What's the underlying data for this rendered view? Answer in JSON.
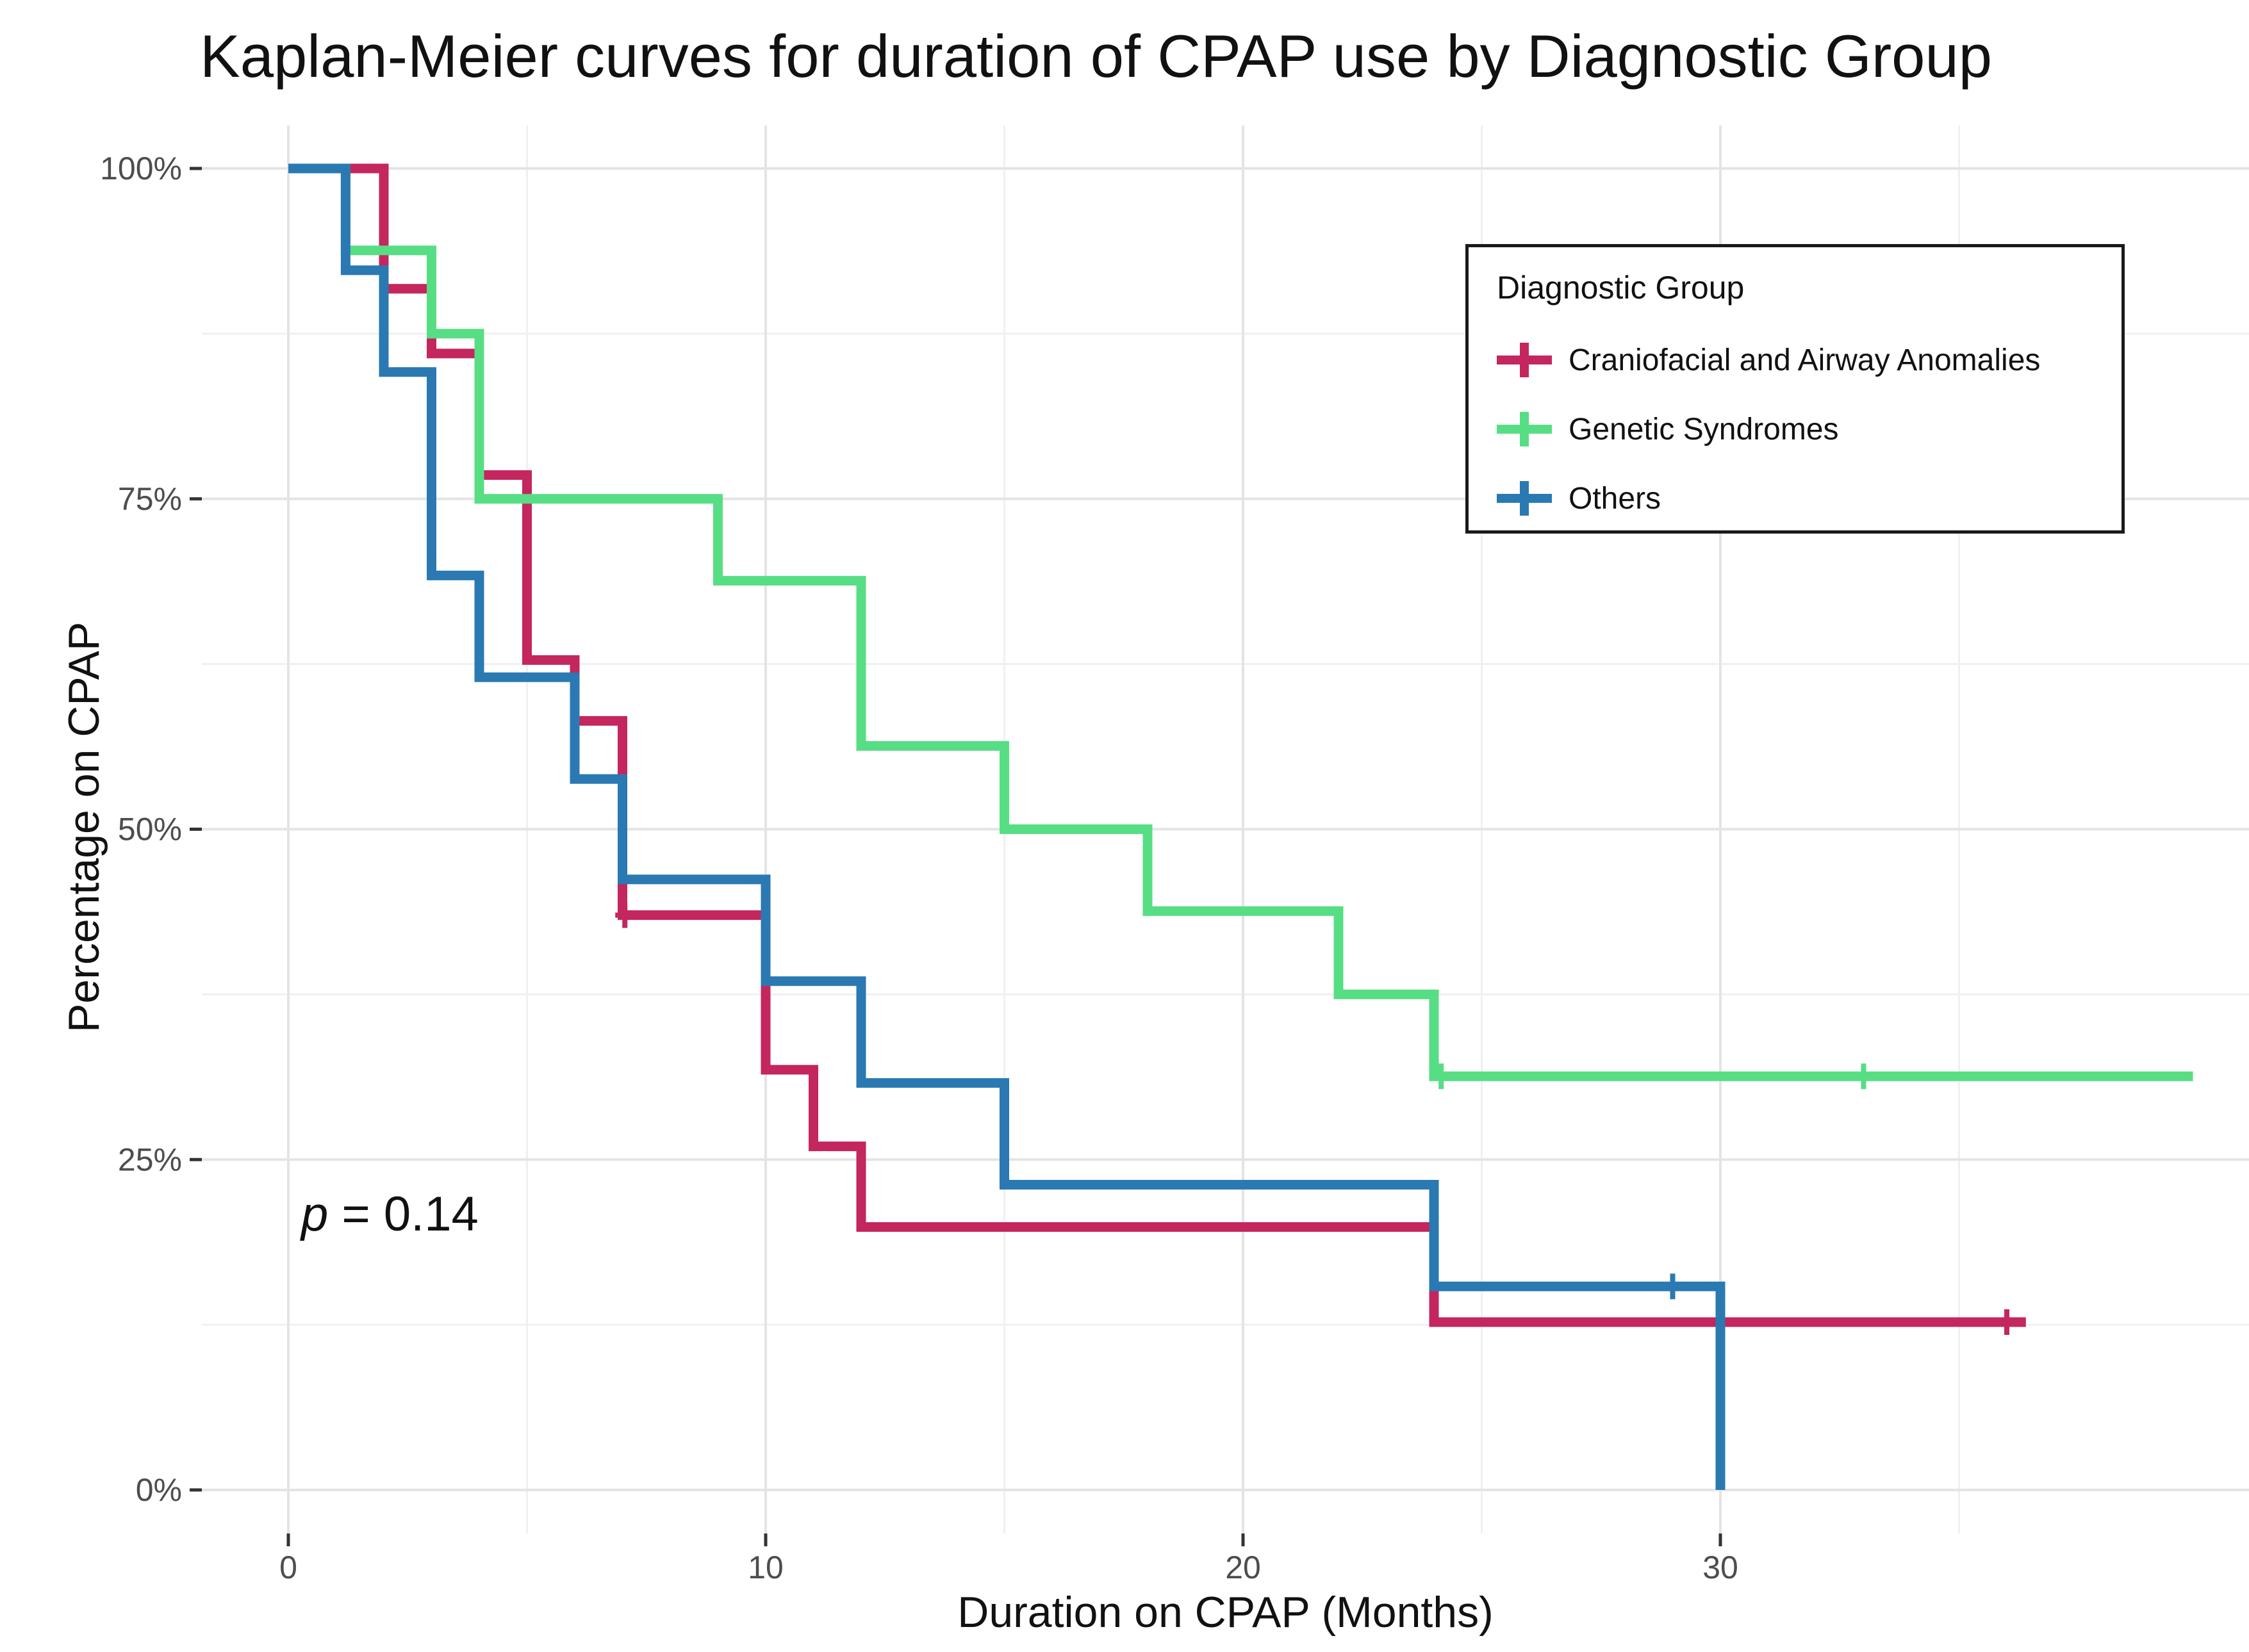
{
  "figure": {
    "background": "#ffffff"
  },
  "annotation": {
    "p_italic": "p",
    "p_rest": " = 0.14"
  },
  "chart_data": {
    "type": "line",
    "subtype": "kaplan_meier_step_curves",
    "title": "Kaplan-Meier curves for duration of CPAP use by Diagnostic Group",
    "xlabel": "Duration on CPAP (Months)",
    "ylabel": "Percentage on CPAP",
    "p_value_text": "p = 0.14",
    "grid": "on",
    "xlim": [
      -1.8,
      41.1
    ],
    "ylim": [
      -5.3,
      105
    ],
    "x_major_ticks": [
      0,
      10,
      20,
      30
    ],
    "x_tick_labels": [
      "0",
      "10",
      "20",
      "30"
    ],
    "x_minor_gridlines": [
      5,
      15,
      25,
      35
    ],
    "y_major_ticks": [
      0,
      25,
      50,
      75,
      100
    ],
    "y_tick_labels": [
      "0%",
      "25%",
      "50%",
      "75%",
      "100%"
    ],
    "y_minor_gridlines": [
      12.5,
      37.5,
      62.5,
      87.5
    ],
    "legend": {
      "title": "Diagnostic Group",
      "position": "inside-top-right",
      "border_color": "#1a1a1a"
    },
    "style_colors": {
      "major_gridline": "#E4E4E4",
      "minor_gridline": "#F0F0F0",
      "tick_mark": "#333333",
      "tick_label": "#4D4D4D"
    },
    "series": [
      {
        "name": "Craniofacial and Airway Anomalies",
        "color": "#C4265E",
        "x_unit": "months",
        "y_unit": "percent_on_cpap",
        "points": [
          [
            0,
            100
          ],
          [
            2,
            90.9
          ],
          [
            3,
            86.0
          ],
          [
            4,
            76.8
          ],
          [
            5,
            62.8
          ],
          [
            6,
            58.2
          ],
          [
            7,
            43.5
          ],
          [
            10,
            31.8
          ],
          [
            11,
            26.0
          ],
          [
            12,
            19.9
          ],
          [
            24,
            12.7
          ]
        ],
        "end_time": 36.4,
        "censor_marks": [
          [
            7.05,
            43.5
          ],
          [
            36,
            12.7
          ]
        ]
      },
      {
        "name": "Genetic Syndromes",
        "color": "#57DE84",
        "x_unit": "months",
        "y_unit": "percent_on_cpap",
        "points": [
          [
            0,
            100
          ],
          [
            1.2,
            93.8
          ],
          [
            3,
            87.5
          ],
          [
            4,
            75
          ],
          [
            9,
            68.8
          ],
          [
            12,
            56.3
          ],
          [
            15,
            50
          ],
          [
            18,
            43.8
          ],
          [
            22,
            37.5
          ],
          [
            24,
            31.3
          ]
        ],
        "end_time": 39.9,
        "censor_marks": [
          [
            24.15,
            31.3
          ],
          [
            33,
            31.3
          ]
        ]
      },
      {
        "name": "Others",
        "color": "#2A79B2",
        "x_unit": "months",
        "y_unit": "percent_on_cpap",
        "points": [
          [
            0,
            100
          ],
          [
            1.2,
            92.3
          ],
          [
            2,
            84.6
          ],
          [
            3,
            69.2
          ],
          [
            4,
            61.5
          ],
          [
            6,
            53.8
          ],
          [
            7,
            46.2
          ],
          [
            10,
            38.5
          ],
          [
            12,
            30.8
          ],
          [
            15,
            23.1
          ],
          [
            24,
            15.4
          ],
          [
            30,
            0
          ]
        ],
        "end_time": 30,
        "censor_marks": [
          [
            29,
            15.4
          ]
        ]
      }
    ]
  }
}
